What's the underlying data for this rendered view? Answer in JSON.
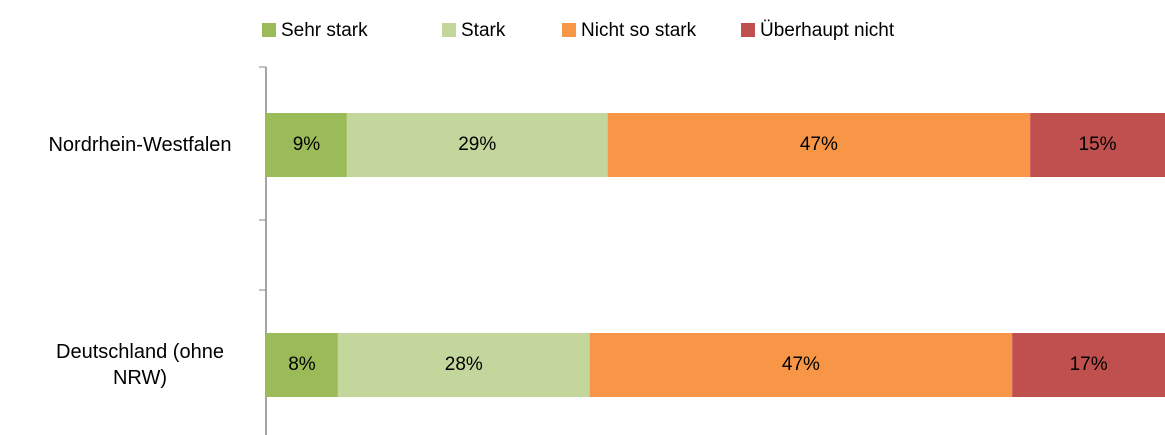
{
  "chart_data": {
    "type": "stacked-bar-horizontal",
    "categories": [
      "Nordrhein-Westfalen",
      "Deutschland (ohne NRW)"
    ],
    "series": [
      {
        "name": "Sehr stark",
        "color": "#9bbb59",
        "values": [
          9,
          8
        ],
        "value_labels": [
          "9%",
          "8%"
        ]
      },
      {
        "name": "Stark",
        "color": "#c3d69b",
        "values": [
          29,
          28
        ],
        "value_labels": [
          "29%",
          "28%"
        ]
      },
      {
        "name": "Nicht so stark",
        "color": "#f79646",
        "values": [
          47,
          47
        ],
        "value_labels": [
          "47%",
          "47%"
        ]
      },
      {
        "name": "Überhaupt nicht",
        "color": "#c0504d",
        "values": [
          15,
          17
        ],
        "value_labels": [
          "15%",
          "17%"
        ]
      }
    ],
    "legend": "top"
  }
}
